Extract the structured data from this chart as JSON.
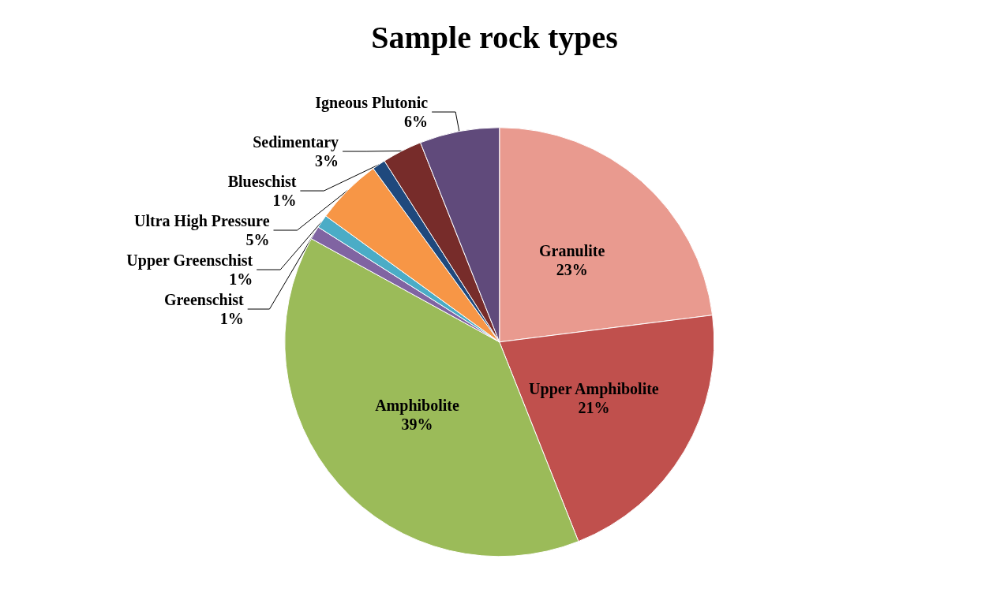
{
  "chart_data": {
    "type": "pie",
    "title": "Sample rock types",
    "categories": [
      "Granulite",
      "Upper Amphibolite",
      "Amphibolite",
      "Greenschist",
      "Upper Greenschist",
      "Ultra High Pressure",
      "Blueschist",
      "Sedimentary",
      "Igneous Plutonic"
    ],
    "values": [
      23,
      21,
      39,
      1,
      1,
      5,
      1,
      3,
      6
    ],
    "value_labels": [
      "23%",
      "21%",
      "39%",
      "1%",
      "1%",
      "5%",
      "1%",
      "3%",
      "6%"
    ],
    "colors": [
      "#e99a8f",
      "#c0504d",
      "#9bbb59",
      "#8064a2",
      "#4bacc6",
      "#f79646",
      "#1f497d",
      "#772c2a",
      "#604a7b"
    ],
    "legend": false
  }
}
